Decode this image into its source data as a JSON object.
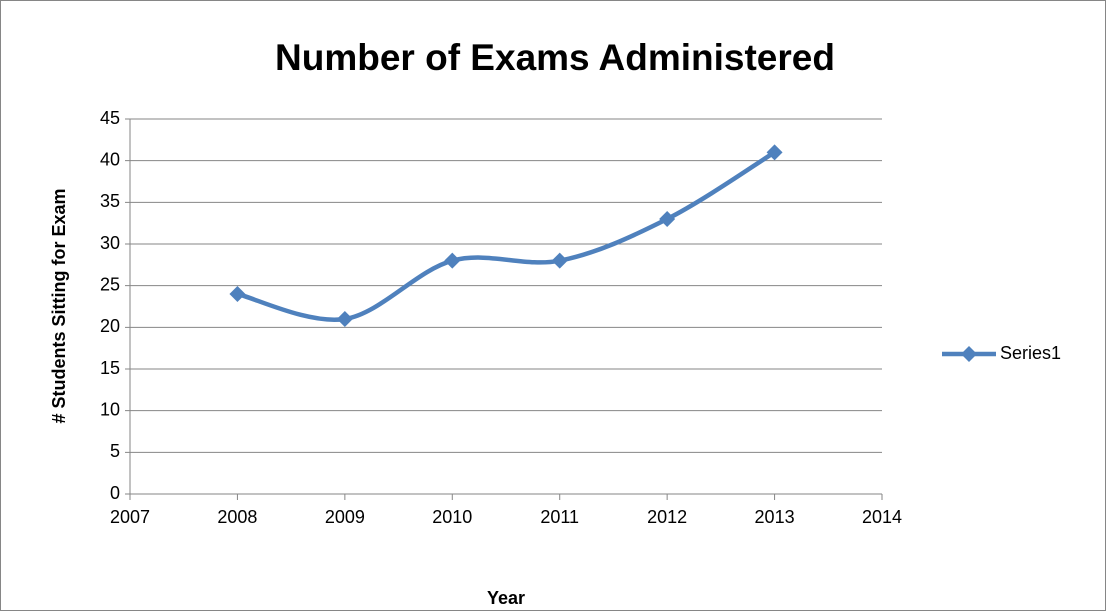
{
  "chart_data": {
    "type": "line",
    "title": "Number of Exams Administered",
    "x_label": "Year",
    "y_label": "# Students Sitting for Exam",
    "x": [
      2008,
      2009,
      2010,
      2011,
      2012,
      2013
    ],
    "series": [
      {
        "name": "Series1",
        "color": "#4f81bd",
        "values": [
          24,
          21,
          28,
          28,
          33,
          41
        ]
      }
    ],
    "xlim": [
      2007,
      2014
    ],
    "xticks": [
      2007,
      2008,
      2009,
      2010,
      2011,
      2012,
      2013,
      2014
    ],
    "ylim": [
      0,
      45
    ],
    "yticks": [
      0,
      5,
      10,
      15,
      20,
      25,
      30,
      35,
      40,
      45
    ],
    "grid": true,
    "smooth": true,
    "legend": "right"
  }
}
